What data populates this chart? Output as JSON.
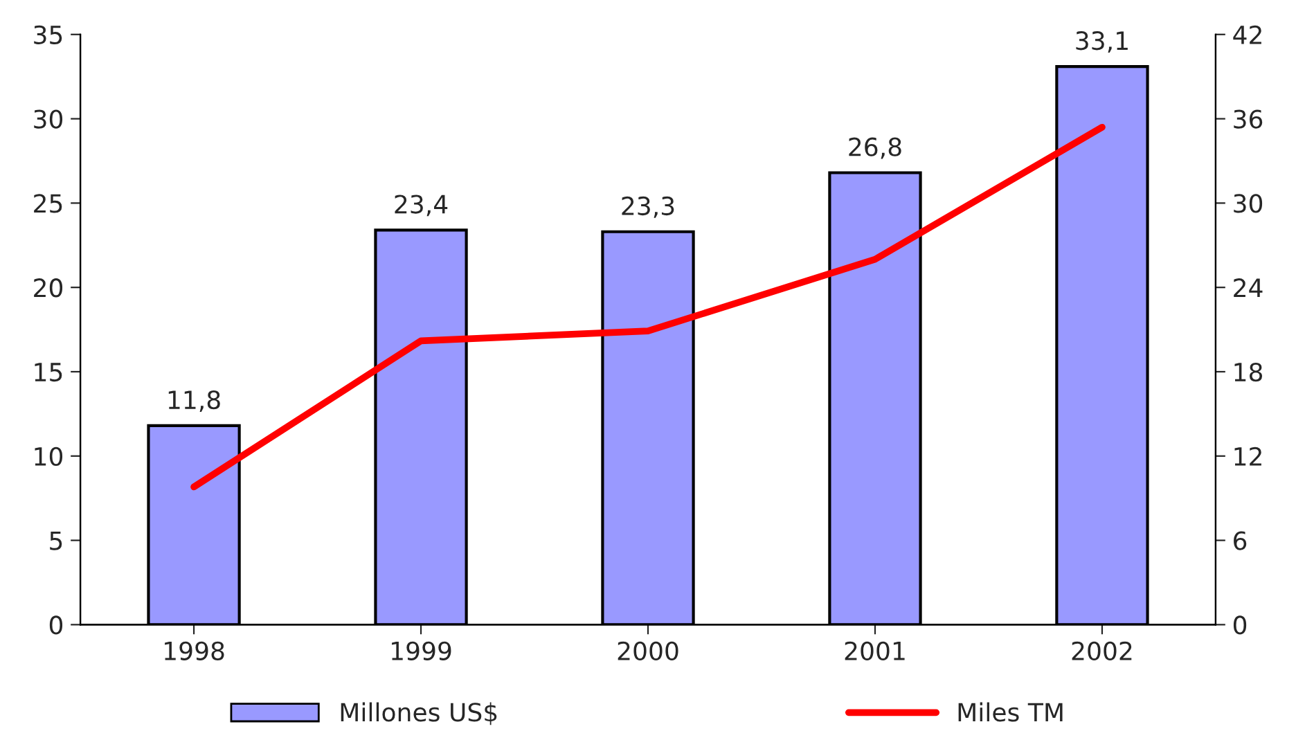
{
  "chart_data": {
    "type": "bar",
    "categories": [
      "1998",
      "1999",
      "2000",
      "2001",
      "2002"
    ],
    "series": [
      {
        "name": "Millones US$",
        "color": "#9999ff",
        "values": [
          11.8,
          23.4,
          23.3,
          26.8,
          33.1
        ],
        "value_labels": [
          "11,8",
          "23,4",
          "23,3",
          "26,8",
          "33,1"
        ]
      },
      {
        "name": "Miles TM",
        "type": "line",
        "axis": "y2",
        "color": "#ff0000",
        "values": [
          9.8,
          20.2,
          20.9,
          26.0,
          35.4
        ]
      }
    ],
    "ylim": [
      0,
      35
    ],
    "yticks": [
      0,
      5,
      10,
      15,
      20,
      25,
      30,
      35
    ],
    "y2lim": [
      0,
      42
    ],
    "y2ticks": [
      0,
      6,
      12,
      18,
      24,
      30,
      36,
      42
    ],
    "grid": false,
    "legend": "bottom",
    "marker": "none",
    "line_style": "solid"
  }
}
